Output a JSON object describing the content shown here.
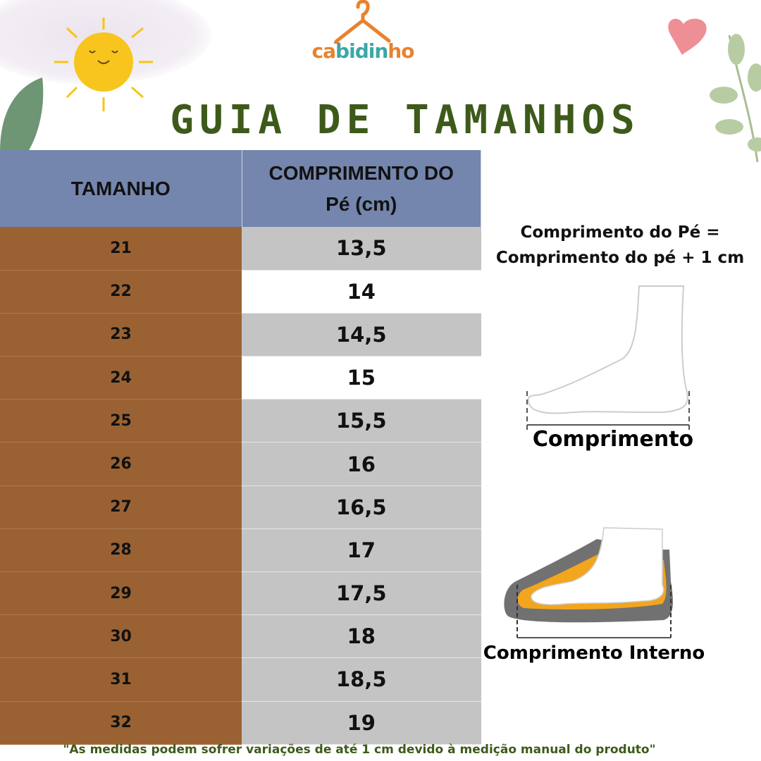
{
  "brand": "cabidinho",
  "title": "GUIA DE TAMANHOS",
  "table": {
    "headers": [
      "TAMANHO",
      "COMPRIMENTO DO Pé (cm)"
    ],
    "header_line1": "COMPRIMENTO DO",
    "header_line2": "Pé (cm)",
    "rows": [
      {
        "size": "21",
        "length": "13,5"
      },
      {
        "size": "22",
        "length": "14"
      },
      {
        "size": "23",
        "length": "14,5"
      },
      {
        "size": "24",
        "length": "15"
      },
      {
        "size": "25",
        "length": "15,5"
      },
      {
        "size": "26",
        "length": "16"
      },
      {
        "size": "27",
        "length": "16,5"
      },
      {
        "size": "28",
        "length": "17"
      },
      {
        "size": "29",
        "length": "17,5"
      },
      {
        "size": "30",
        "length": "18"
      },
      {
        "size": "31",
        "length": "18,5"
      },
      {
        "size": "32",
        "length": "19"
      }
    ]
  },
  "formula": {
    "line1": "Comprimento do Pé =",
    "line2": "Comprimento do pé + 1 cm"
  },
  "foot_label": "Comprimento",
  "shoe_label": "Comprimento Interno",
  "footnote": "\"As medidas podem sofrer variações de até 1 cm devido à medição manual do produto\"",
  "colors": {
    "header": "#7486ad",
    "size_col": "#9a6233",
    "gray_row": "#c4c4c4",
    "title": "#3d5a1a",
    "logo_orange": "#e8822e",
    "logo_teal": "#3aa7a8"
  }
}
